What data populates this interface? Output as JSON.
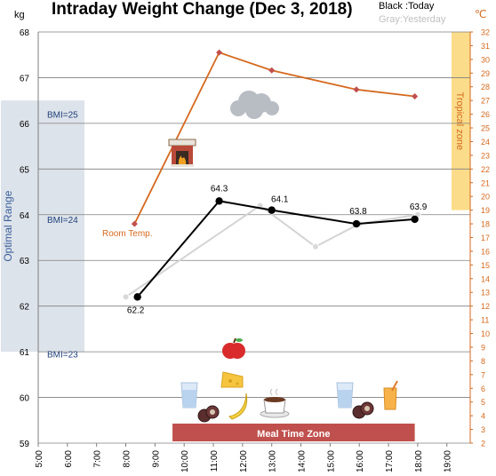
{
  "chart_data": {
    "type": "line",
    "title": "Intraday Weight Change (Dec 3, 2018)",
    "legend": {
      "today": "Black :Today",
      "yesterday": "Gray:Yesterday",
      "placement": "top-right"
    },
    "y_left": {
      "unit": "kg",
      "range": [
        59,
        68
      ],
      "ticks": [
        "59",
        "60",
        "61",
        "62",
        "63",
        "64",
        "65",
        "66",
        "67",
        "68"
      ]
    },
    "y_right": {
      "unit": "℃",
      "range": [
        2,
        32
      ],
      "ticks": [
        "2",
        "3",
        "4",
        "5",
        "6",
        "7",
        "8",
        "9",
        "10",
        "11",
        "12",
        "13",
        "14",
        "15",
        "16",
        "17",
        "18",
        "19",
        "20",
        "21",
        "22",
        "23",
        "24",
        "25",
        "26",
        "27",
        "28",
        "29",
        "30",
        "31",
        "32"
      ]
    },
    "x_axis": {
      "ticks": [
        "5:00",
        "6:00",
        "7:00",
        "8:00",
        "9:00",
        "10:00",
        "11:00",
        "12:00",
        "13:00",
        "14:00",
        "15:00",
        "16:00",
        "17:00",
        "18:00",
        "19:00"
      ]
    },
    "grid": true,
    "series": [
      {
        "name": "Today",
        "axis": "left",
        "color": "#000000",
        "points": [
          {
            "x": 8.4,
            "y": 62.2,
            "label": "62.2"
          },
          {
            "x": 11.2,
            "y": 64.3,
            "label": "64.3"
          },
          {
            "x": 13.0,
            "y": 64.1,
            "label": "64.1"
          },
          {
            "x": 15.9,
            "y": 63.8,
            "label": "63.8"
          },
          {
            "x": 17.9,
            "y": 63.9,
            "label": "63.9"
          }
        ]
      },
      {
        "name": "Yesterday",
        "axis": "left",
        "color": "#d4d4d4",
        "points": [
          {
            "x": 8.0,
            "y": 62.2
          },
          {
            "x": 12.6,
            "y": 64.2
          },
          {
            "x": 14.5,
            "y": 63.3
          },
          {
            "x": 16.0,
            "y": 63.8
          },
          {
            "x": 18.0,
            "y": 64.0
          }
        ]
      },
      {
        "name": "Room Temp.",
        "axis": "right",
        "color": "#d46a1f",
        "points": [
          {
            "x": 8.3,
            "y": 18.0
          },
          {
            "x": 11.2,
            "y": 30.5
          },
          {
            "x": 13.0,
            "y": 29.2
          },
          {
            "x": 15.9,
            "y": 27.8
          },
          {
            "x": 17.9,
            "y": 27.3
          }
        ]
      }
    ],
    "annotations": {
      "optimal_range": {
        "label": "Optimal Range",
        "kg_range": [
          61,
          66.5
        ]
      },
      "bmi_labels": [
        {
          "text": "BMI=25",
          "kg": 66.2
        },
        {
          "text": "BMI=24",
          "kg": 63.9
        },
        {
          "text": "BMI=23",
          "kg": 60.95
        }
      ],
      "tropical_zone": {
        "label": "Tropical zone",
        "temp_range": [
          19,
          32
        ]
      },
      "meal_time_zone": {
        "label": "Meal Time Zone",
        "x_range": [
          9.6,
          17.9
        ]
      },
      "room_temp_label": "Room Temp."
    },
    "icons": [
      "fireplace-icon",
      "cloud-icon",
      "apple-icon",
      "cheese-icon",
      "banana-icon",
      "water-glass-icon",
      "cookies-icon",
      "coffee-cup-icon",
      "juice-glass-icon"
    ]
  }
}
